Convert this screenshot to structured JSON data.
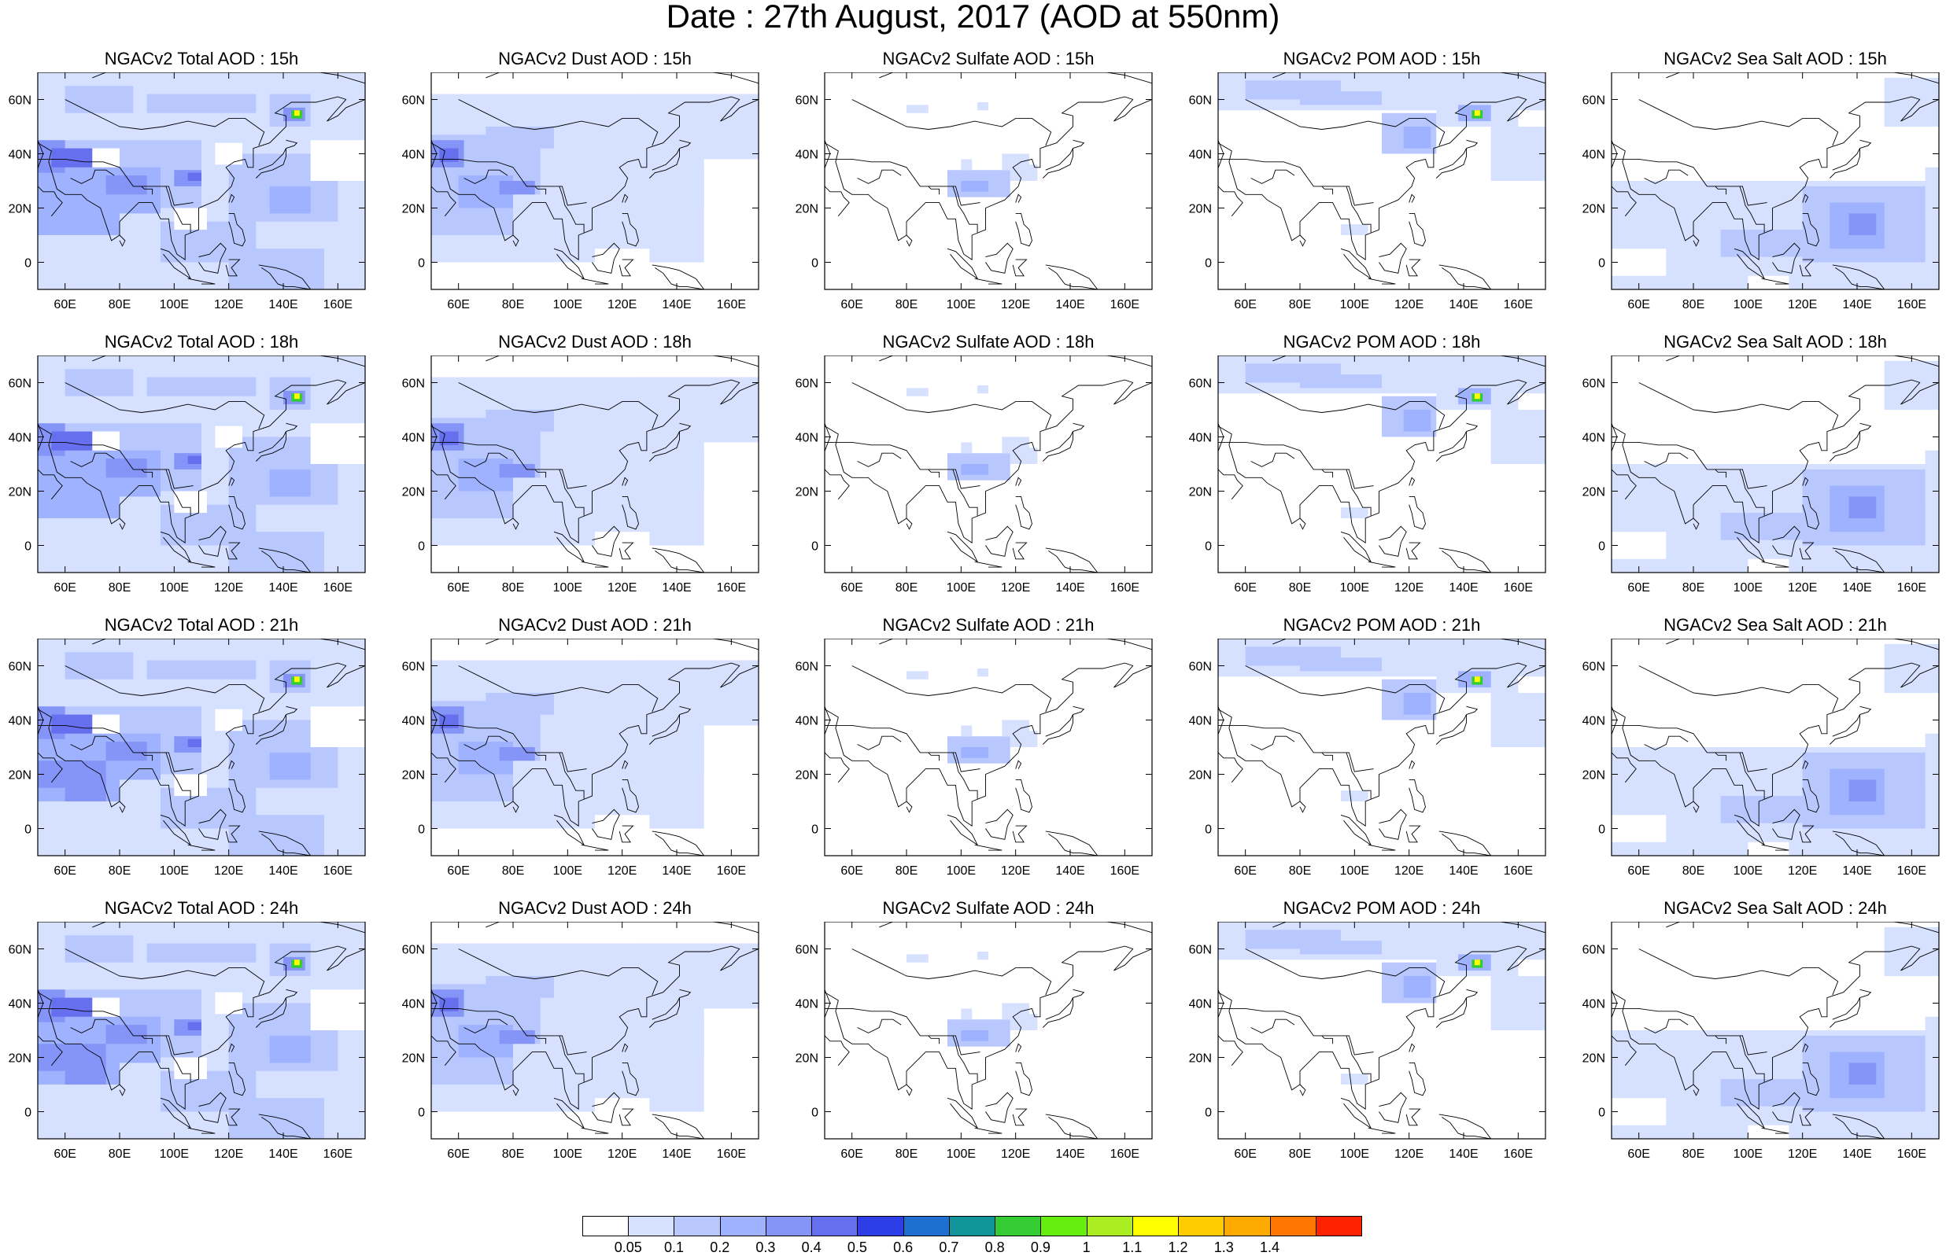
{
  "title": "Date : 27th August, 2017 (AOD at 550nm)",
  "map": {
    "lon_ticks": [
      "60E",
      "80E",
      "100E",
      "120E",
      "140E",
      "160E"
    ],
    "lat_ticks": [
      "60N",
      "40N",
      "20N",
      "0"
    ],
    "lon_range": [
      50,
      170
    ],
    "lat_range": [
      -10,
      70
    ]
  },
  "panels": [
    [
      "NGACv2 Total AOD : 15h",
      "NGACv2 Dust AOD : 15h",
      "NGACv2 Sulfate AOD : 15h",
      "NGACv2 POM AOD : 15h",
      "NGACv2 Sea Salt AOD : 15h"
    ],
    [
      "NGACv2 Total AOD : 18h",
      "NGACv2 Dust AOD : 18h",
      "NGACv2 Sulfate AOD : 18h",
      "NGACv2 POM AOD : 18h",
      "NGACv2 Sea Salt AOD : 18h"
    ],
    [
      "NGACv2 Total AOD : 21h",
      "NGACv2 Dust AOD : 21h",
      "NGACv2 Sulfate AOD : 21h",
      "NGACv2 POM AOD : 21h",
      "NGACv2 Sea Salt AOD : 21h"
    ],
    [
      "NGACv2 Total AOD : 24h",
      "NGACv2 Dust AOD : 24h",
      "NGACv2 Sulfate AOD : 24h",
      "NGACv2 POM AOD : 24h",
      "NGACv2 Sea Salt  AOD : 24h"
    ]
  ],
  "colorbar": {
    "labels": [
      "0.05",
      "0.1",
      "0.2",
      "0.3",
      "0.4",
      "0.5",
      "0.6",
      "0.7",
      "0.8",
      "0.9",
      "1",
      "1.1",
      "1.2",
      "1.3",
      "1.4"
    ],
    "colors": [
      "#ffffff",
      "#d6e0ff",
      "#b8c8ff",
      "#9eb2ff",
      "#8494f7",
      "#6670ee",
      "#2e3ee6",
      "#1f6fd0",
      "#12959a",
      "#33cc33",
      "#66ee11",
      "#aaee22",
      "#ffff00",
      "#ffcc00",
      "#ffaa00",
      "#ff7700",
      "#ff2200"
    ]
  }
}
